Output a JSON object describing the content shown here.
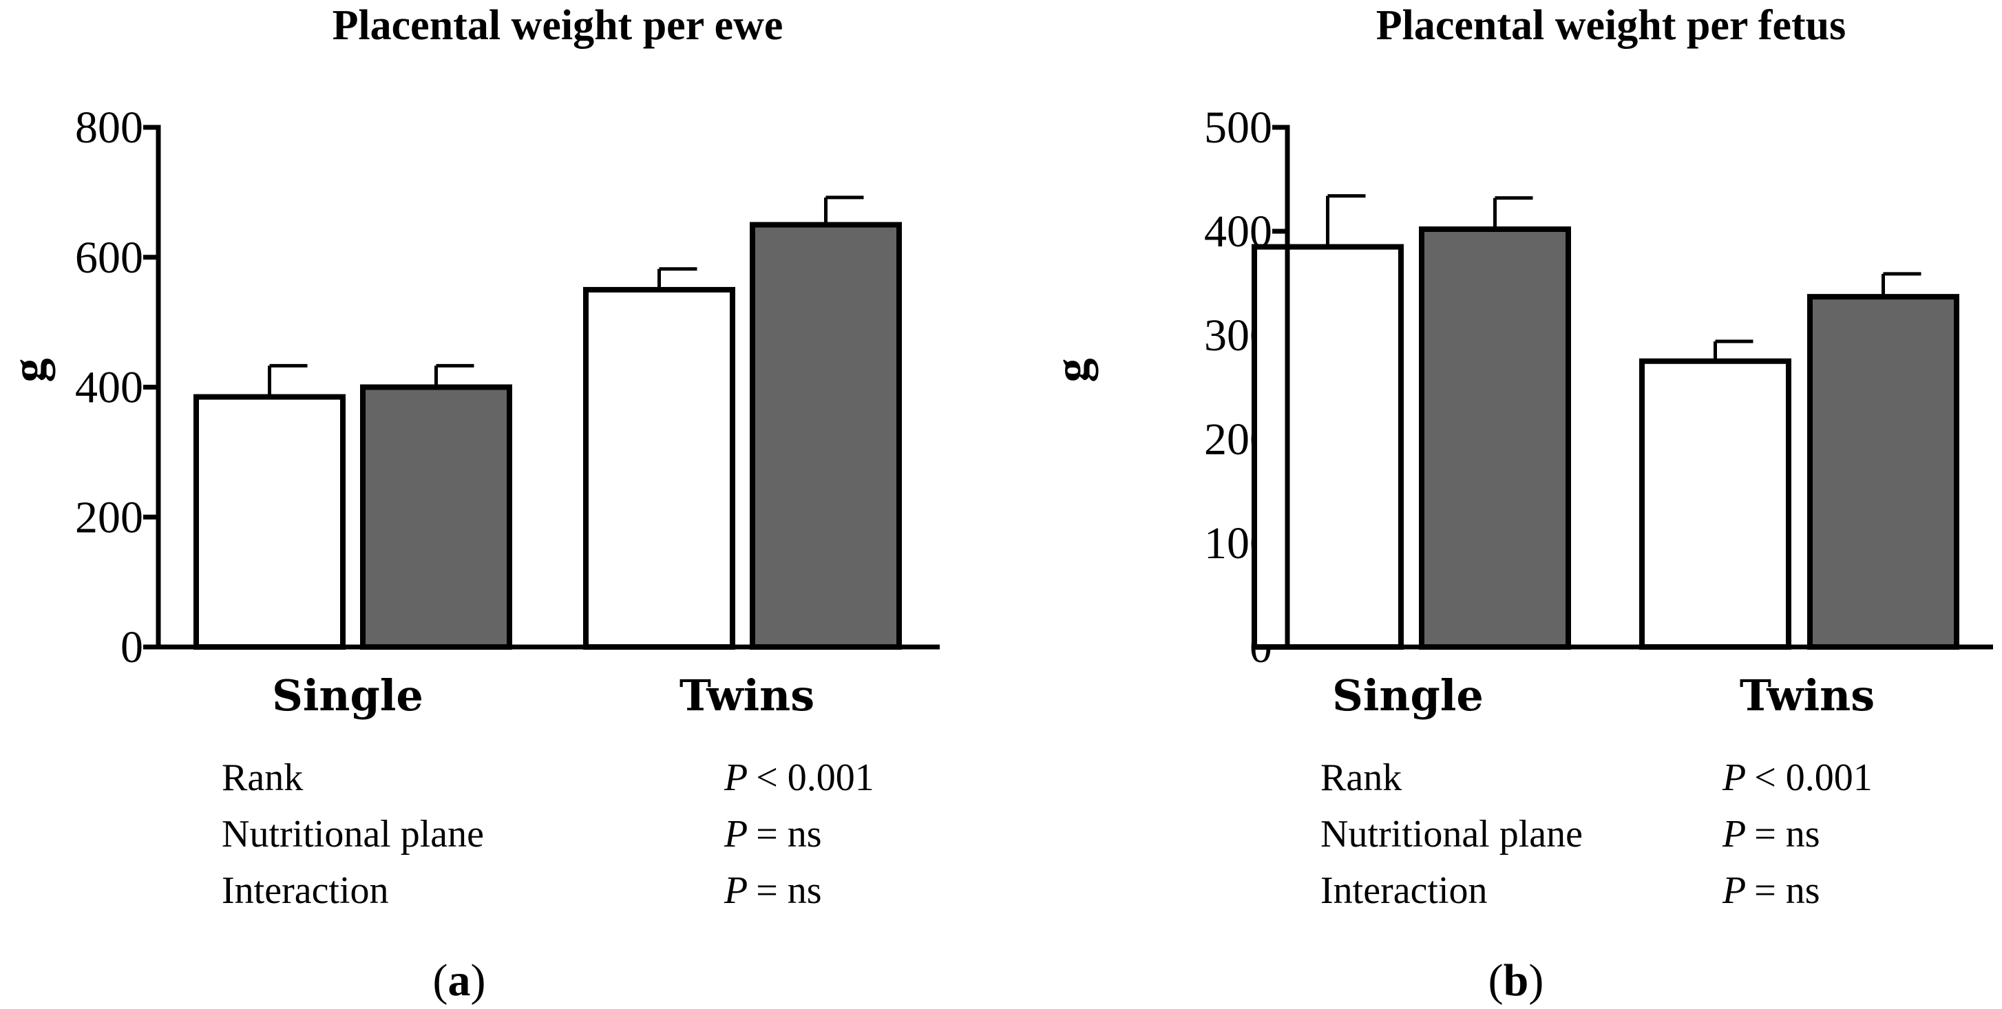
{
  "chart_data": [
    {
      "type": "bar",
      "title": "Placental weight per ewe",
      "ylabel": "g",
      "ylim": [
        0,
        800
      ],
      "yticks": [
        0,
        200,
        400,
        600,
        800
      ],
      "categories": [
        "Single",
        "Twins"
      ],
      "series": [
        {
          "values": [
            385,
            550
          ],
          "errors": [
            48,
            32
          ],
          "color": "#ffffff"
        },
        {
          "values": [
            400,
            650
          ],
          "errors": [
            33,
            42
          ],
          "color": "#656565"
        }
      ],
      "stats": [
        {
          "label": "Rank",
          "p_symbol": "P",
          "p_value": "< 0.001"
        },
        {
          "label": "Nutritional plane",
          "p_symbol": "P",
          "p_value": "= ns"
        },
        {
          "label": "Interaction",
          "p_symbol": "P",
          "p_value": "= ns"
        }
      ],
      "panel_label": {
        "open": "(",
        "letter": "a",
        "close": ")"
      }
    },
    {
      "type": "bar",
      "title": "Placental weight per fetus",
      "ylabel": "g",
      "ylim": [
        0,
        500
      ],
      "yticks": [
        0,
        100,
        200,
        300,
        400,
        500
      ],
      "categories": [
        "Single",
        "Twins"
      ],
      "series": [
        {
          "values": [
            385,
            275
          ],
          "errors": [
            49,
            19
          ],
          "color": "#ffffff"
        },
        {
          "values": [
            402,
            337
          ],
          "errors": [
            30,
            22
          ],
          "color": "#656565"
        }
      ],
      "stats": [
        {
          "label": "Rank",
          "p_symbol": "P",
          "p_value": "< 0.001"
        },
        {
          "label": "Nutritional plane",
          "p_symbol": "P",
          "p_value": "= ns"
        },
        {
          "label": "Interaction",
          "p_symbol": "P",
          "p_value": "= ns"
        }
      ],
      "panel_label": {
        "open": "(",
        "letter": "b",
        "close": ")"
      }
    }
  ]
}
